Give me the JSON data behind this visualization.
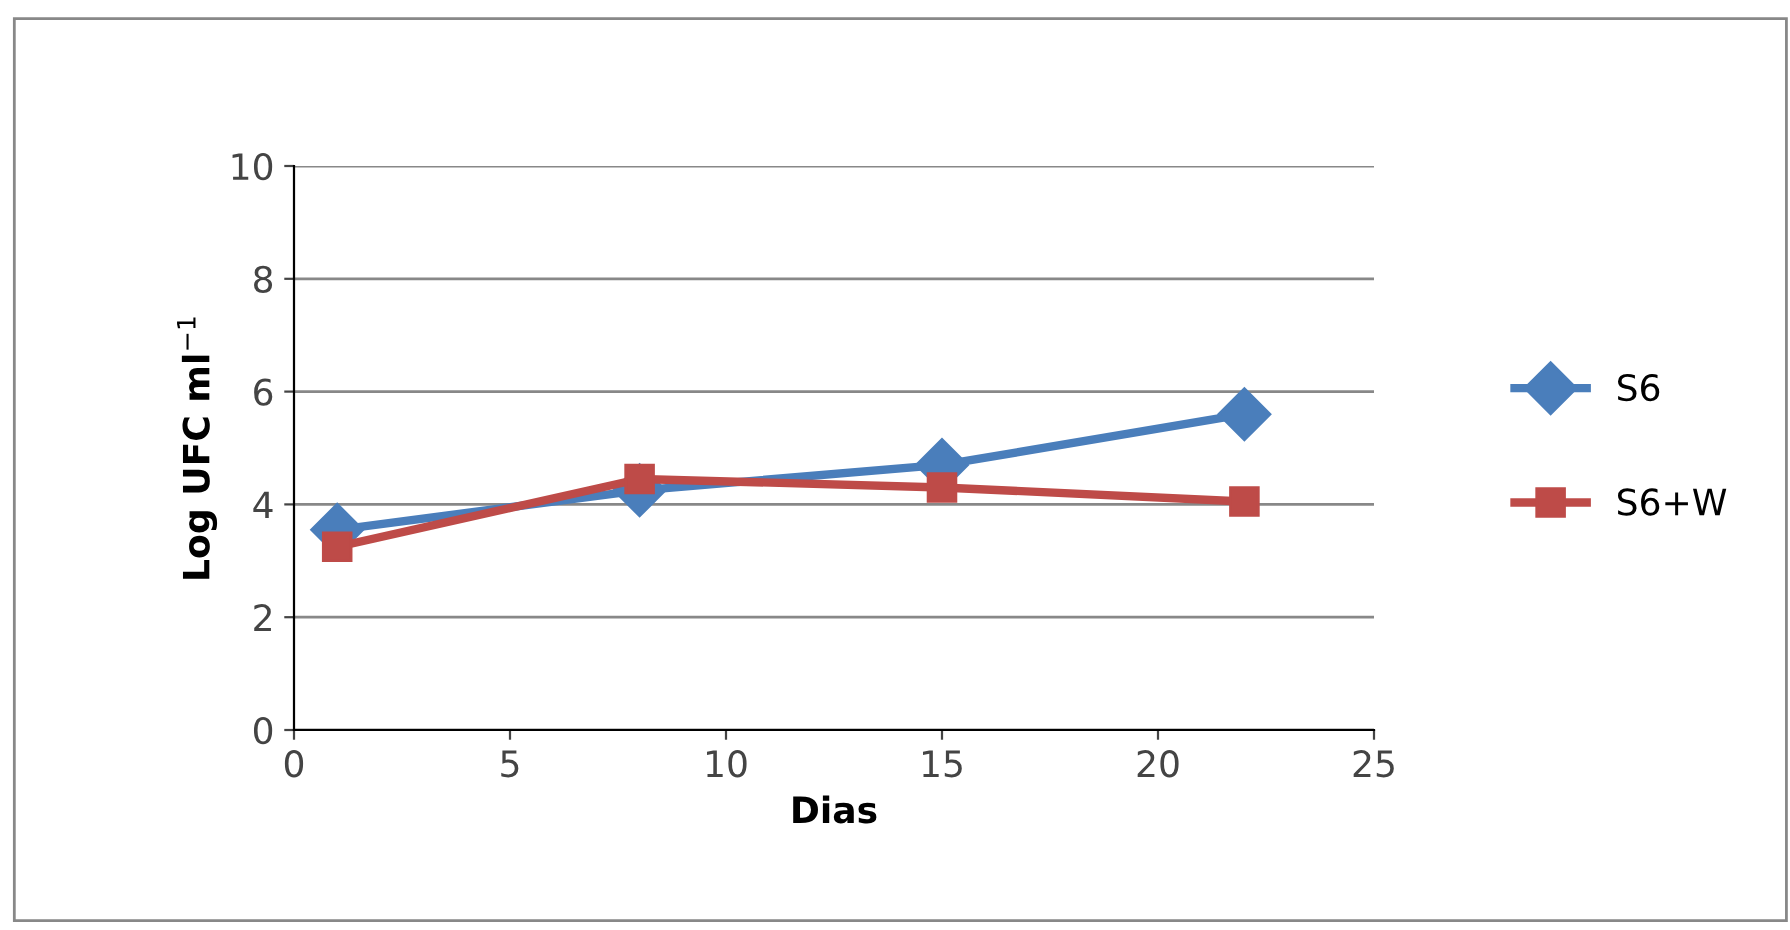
{
  "chart_data": {
    "type": "line",
    "xlabel": "Dias",
    "ylabel": "Log UFC ml$^{−1}$",
    "x": [
      1,
      8,
      15,
      22
    ],
    "series": [
      {
        "name": "S6",
        "color": "#4a7ebb",
        "values": [
          3.55,
          4.25,
          4.7,
          5.6
        ],
        "marker": "diamond"
      },
      {
        "name": "S6+W",
        "color": "#be4b48",
        "values": [
          3.25,
          4.45,
          4.3,
          4.05
        ],
        "marker": "square"
      }
    ],
    "xlim": [
      0,
      25
    ],
    "xticks": [
      0,
      5,
      10,
      15,
      20,
      25
    ],
    "ylim": [
      0,
      10
    ],
    "yticks": [
      0,
      2,
      4,
      6,
      8,
      10
    ],
    "grid": "y",
    "legend": "right",
    "line_style": "solid"
  }
}
